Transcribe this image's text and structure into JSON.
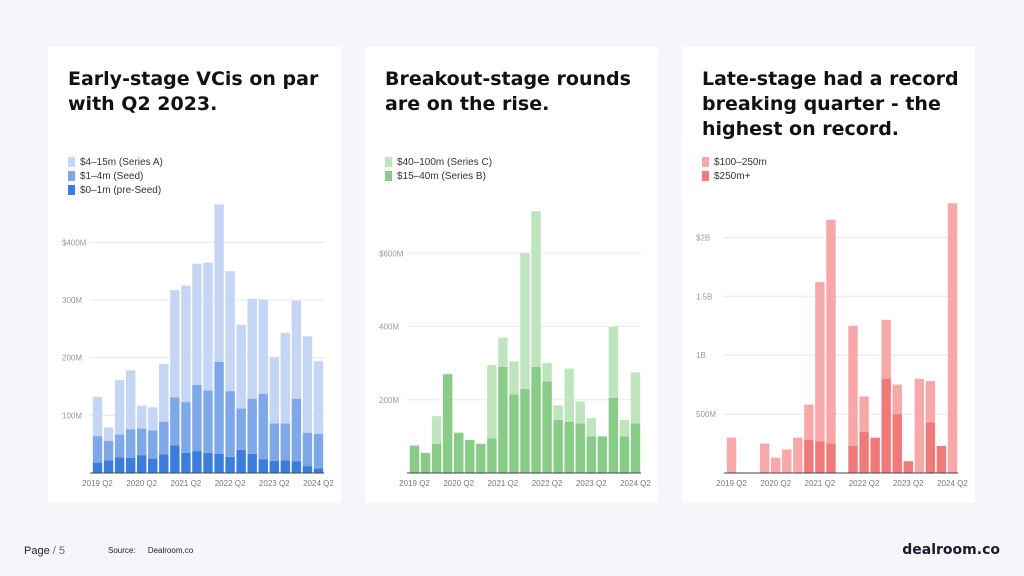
{
  "chart_data": [
    {
      "type": "bar",
      "stacked": true,
      "title": "Early-stage VCis on par with Q2 2023.",
      "categories": [
        "2019 Q2",
        "2019 Q3",
        "2019 Q4",
        "2020 Q1",
        "2020 Q2",
        "2020 Q3",
        "2020 Q4",
        "2021 Q1",
        "2021 Q2",
        "2021 Q3",
        "2021 Q4",
        "2022 Q1",
        "2022 Q2",
        "2022 Q3",
        "2022 Q4",
        "2023 Q1",
        "2023 Q2",
        "2023 Q3",
        "2023 Q4",
        "2024 Q1",
        "2024 Q2"
      ],
      "tick_labels": [
        "2019 Q2",
        "2020 Q2",
        "2021 Q2",
        "2022 Q2",
        "2023 Q2",
        "2024 Q2"
      ],
      "yticks": [
        {
          "value": 100,
          "label": "100M"
        },
        {
          "value": 200,
          "label": "200M"
        },
        {
          "value": 300,
          "label": "300M"
        },
        {
          "value": 400,
          "label": "$400M"
        }
      ],
      "ylim": [
        0,
        470
      ],
      "legend_position": "top-left",
      "grid": true,
      "series": [
        {
          "name": "$0–1m (pre-Seed)",
          "color": "#3b7ddd",
          "values": [
            18,
            22,
            27,
            26,
            31,
            25,
            32,
            48,
            35,
            38,
            35,
            33,
            28,
            40,
            33,
            24,
            21,
            22,
            20,
            12,
            8
          ]
        },
        {
          "name": "$1–4m (Seed)",
          "color": "#7fa8e8",
          "values": [
            46,
            34,
            40,
            50,
            46,
            49,
            57,
            83,
            88,
            115,
            108,
            160,
            114,
            72,
            96,
            113,
            65,
            64,
            109,
            58,
            60
          ]
        },
        {
          "name": "$4–15m (Series A)",
          "color": "#c5d6f5",
          "values": [
            68,
            23,
            94,
            102,
            40,
            40,
            100,
            186,
            202,
            210,
            222,
            273,
            208,
            145,
            173,
            164,
            115,
            157,
            170,
            167,
            126
          ]
        }
      ]
    },
    {
      "type": "bar",
      "stacked": true,
      "title": "Breakout-stage rounds are on the rise.",
      "categories": [
        "2019 Q2",
        "2019 Q3",
        "2019 Q4",
        "2020 Q1",
        "2020 Q2",
        "2020 Q3",
        "2020 Q4",
        "2021 Q1",
        "2021 Q2",
        "2021 Q3",
        "2021 Q4",
        "2022 Q1",
        "2022 Q2",
        "2022 Q3",
        "2022 Q4",
        "2023 Q1",
        "2023 Q2",
        "2023 Q3",
        "2023 Q4",
        "2024 Q1",
        "2024 Q2"
      ],
      "tick_labels": [
        "2019 Q2",
        "2020 Q2",
        "2021 Q2",
        "2022 Q2",
        "2023 Q2",
        "2024 Q2"
      ],
      "yticks": [
        {
          "value": 200,
          "label": "200M"
        },
        {
          "value": 400,
          "label": "400M"
        },
        {
          "value": 600,
          "label": "$600M"
        }
      ],
      "ylim": [
        0,
        740
      ],
      "legend_position": "top-left",
      "grid": true,
      "series": [
        {
          "name": "$15–40m (Series B)",
          "color": "#88cc88",
          "values": [
            75,
            55,
            80,
            270,
            110,
            90,
            80,
            95,
            290,
            215,
            230,
            290,
            250,
            145,
            140,
            135,
            100,
            100,
            205,
            100,
            135
          ]
        },
        {
          "name": "$40–100m (Series C)",
          "color": "#bfe5bf",
          "values": [
            0,
            0,
            75,
            0,
            0,
            0,
            0,
            200,
            80,
            90,
            370,
            425,
            50,
            40,
            145,
            60,
            50,
            0,
            195,
            45,
            140
          ]
        }
      ]
    },
    {
      "type": "bar",
      "stacked": true,
      "title": "Late-stage had a record breaking quarter - the highest on record.",
      "categories": [
        "2019 Q2",
        "2019 Q3",
        "2019 Q4",
        "2020 Q1",
        "2020 Q2",
        "2020 Q3",
        "2020 Q4",
        "2021 Q1",
        "2021 Q2",
        "2021 Q3",
        "2021 Q4",
        "2022 Q1",
        "2022 Q2",
        "2022 Q3",
        "2022 Q4",
        "2023 Q1",
        "2023 Q2",
        "2023 Q3",
        "2023 Q4",
        "2024 Q1",
        "2024 Q2"
      ],
      "tick_labels": [
        "2019 Q2",
        "2020 Q2",
        "2021 Q2",
        "2022 Q2",
        "2023 Q2",
        "2024 Q2"
      ],
      "yticks": [
        {
          "value": 500,
          "label": "500M"
        },
        {
          "value": 1000,
          "label": "1B"
        },
        {
          "value": 1500,
          "label": "1.5B"
        },
        {
          "value": 2000,
          "label": "$2B"
        }
      ],
      "ylim": [
        0,
        2300
      ],
      "legend_position": "top-left",
      "grid": true,
      "series": [
        {
          "name": "$250m+",
          "color": "#f07a7a",
          "values": [
            0,
            0,
            0,
            0,
            0,
            0,
            0,
            280,
            270,
            250,
            0,
            230,
            350,
            300,
            800,
            500,
            100,
            0,
            430,
            230,
            0
          ]
        },
        {
          "name": "$100–250m",
          "color": "#f8a8a8",
          "values": [
            300,
            0,
            0,
            250,
            130,
            200,
            300,
            300,
            1350,
            1900,
            0,
            1020,
            300,
            0,
            500,
            250,
            0,
            800,
            350,
            0,
            2290
          ]
        }
      ]
    }
  ],
  "legends": [
    [
      {
        "label": "$4–15m (Series A)",
        "color": "#c5d6f5"
      },
      {
        "label": "$1–4m (Seed)",
        "color": "#7fa8e8"
      },
      {
        "label": "$0–1m (pre-Seed)",
        "color": "#3b7ddd"
      }
    ],
    [
      {
        "label": "$40–100m (Series C)",
        "color": "#bfe5bf"
      },
      {
        "label": "$15–40m (Series B)",
        "color": "#88cc88"
      }
    ],
    [
      {
        "label": "$100–250m",
        "color": "#f8a8a8"
      },
      {
        "label": "$250m+",
        "color": "#f07a7a"
      }
    ]
  ],
  "footer": {
    "page_label": "Page",
    "page_number": "/ 5",
    "source_label": "Source:",
    "source_value": "Dealroom.co",
    "brand": "dealroom.co"
  }
}
